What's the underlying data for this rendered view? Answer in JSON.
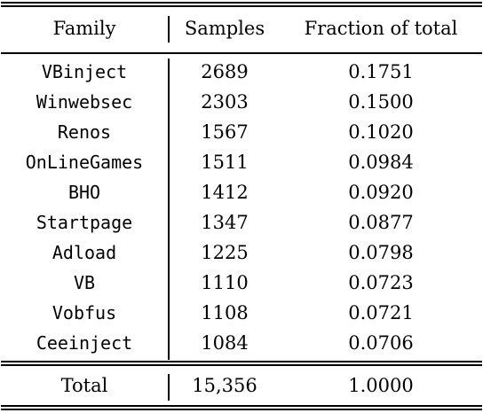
{
  "table": {
    "headers": {
      "family": "Family",
      "samples": "Samples",
      "fraction": "Fraction of total"
    },
    "rows": [
      {
        "family": "VBinject",
        "samples": "2689",
        "fraction": "0.1751"
      },
      {
        "family": "Winwebsec",
        "samples": "2303",
        "fraction": "0.1500"
      },
      {
        "family": "Renos",
        "samples": "1567",
        "fraction": "0.1020"
      },
      {
        "family": "OnLineGames",
        "samples": "1511",
        "fraction": "0.0984"
      },
      {
        "family": "BHO",
        "samples": "1412",
        "fraction": "0.0920"
      },
      {
        "family": "Startpage",
        "samples": "1347",
        "fraction": "0.0877"
      },
      {
        "family": "Adload",
        "samples": "1225",
        "fraction": "0.0798"
      },
      {
        "family": "VB",
        "samples": "1110",
        "fraction": "0.0723"
      },
      {
        "family": "Vobfus",
        "samples": "1108",
        "fraction": "0.0721"
      },
      {
        "family": "Ceeinject",
        "samples": "1084",
        "fraction": "0.0706"
      }
    ],
    "total": {
      "family": "Total",
      "samples": "15,356",
      "fraction": "1.0000"
    }
  }
}
